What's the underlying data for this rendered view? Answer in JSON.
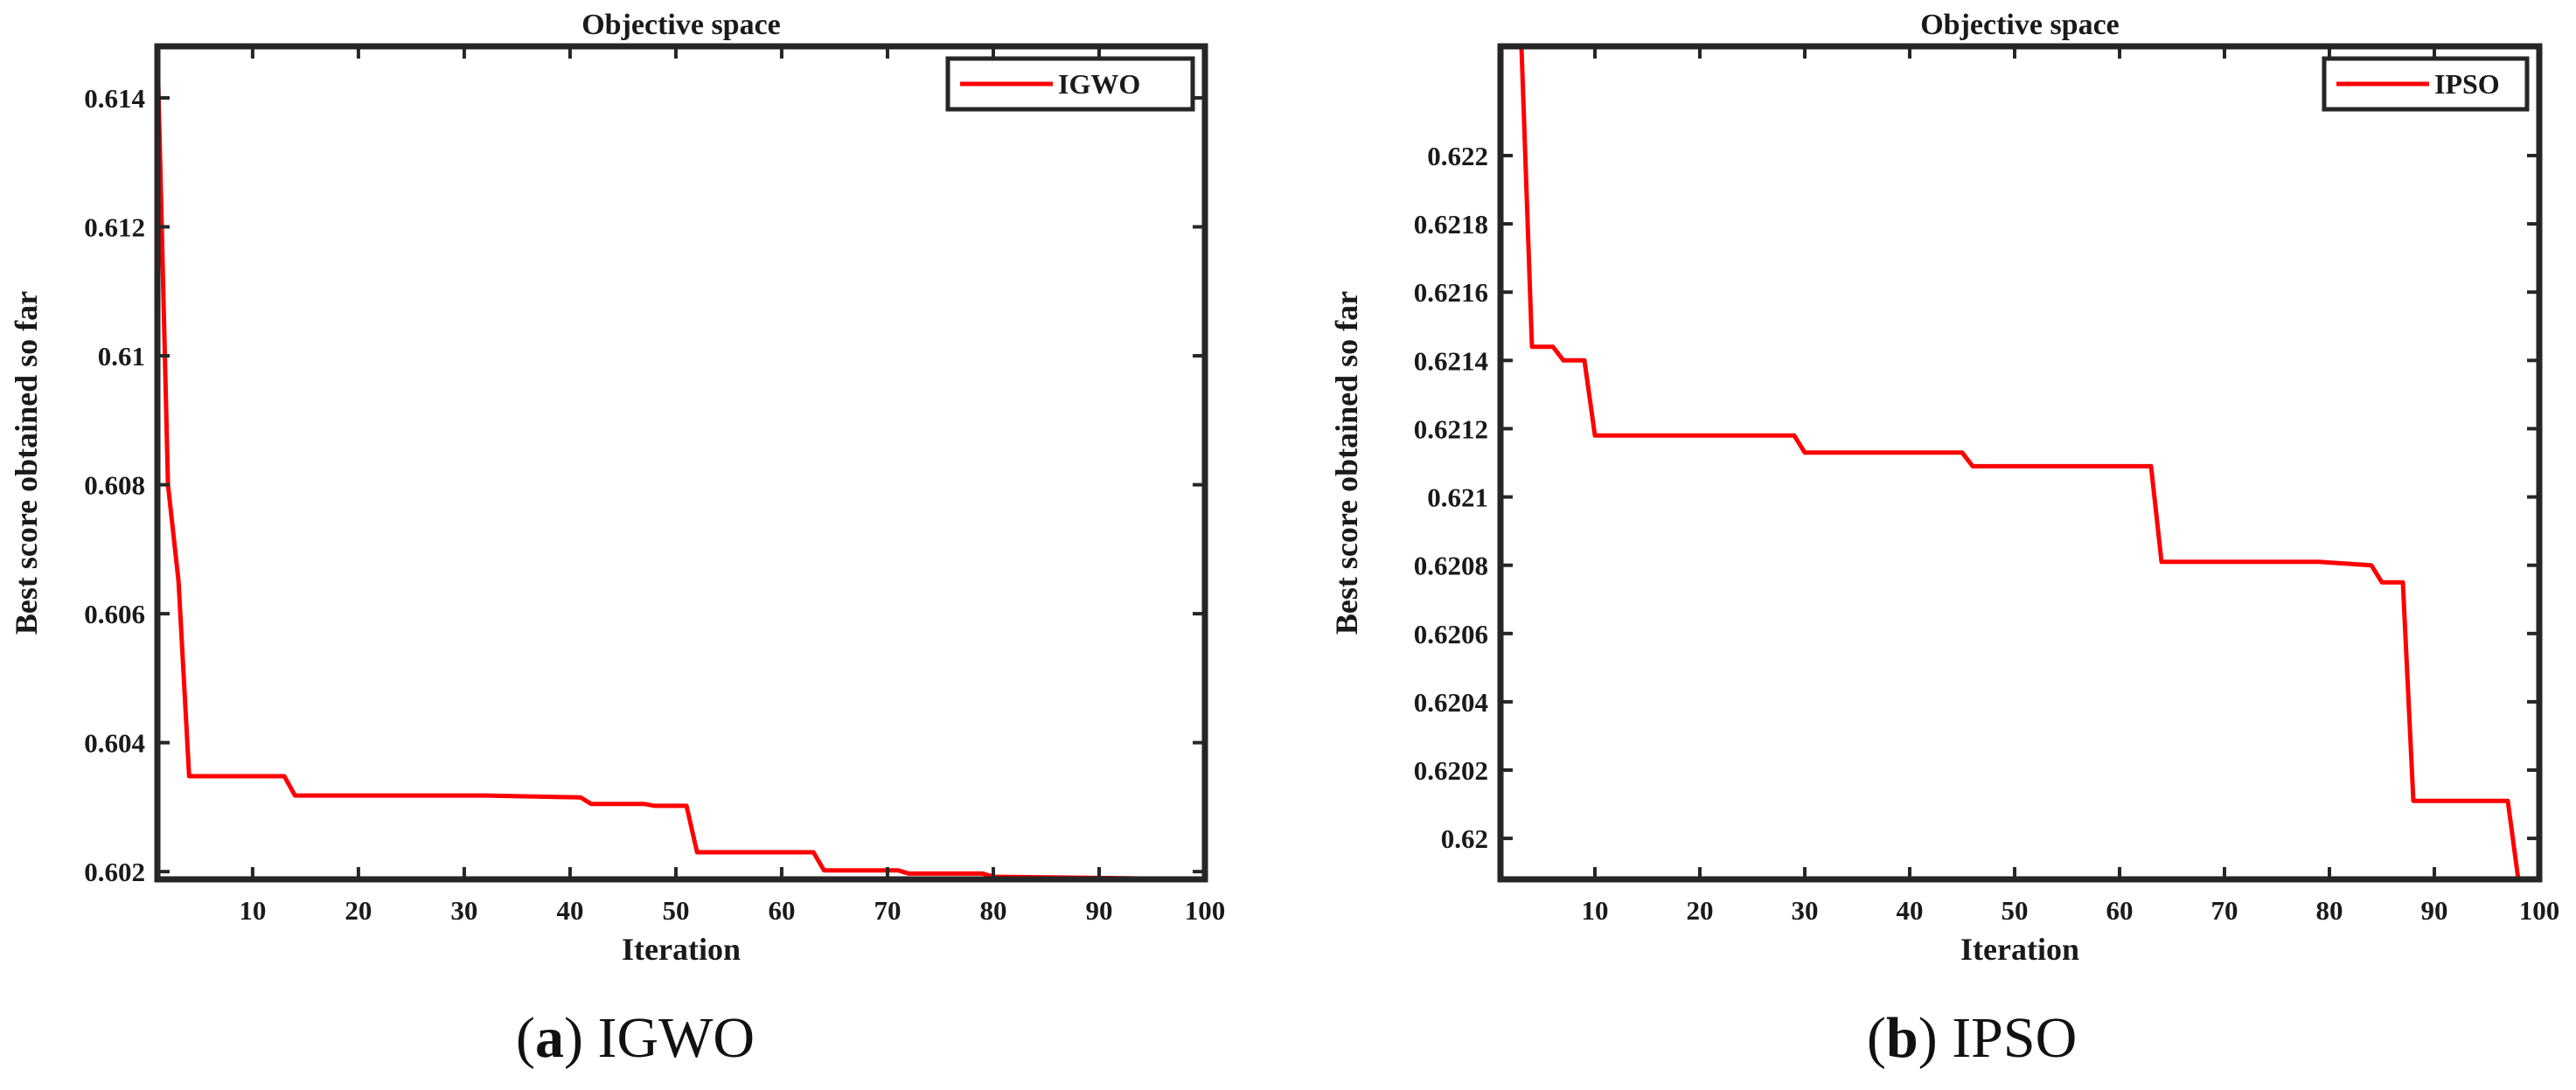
{
  "captions": [
    {
      "letter": "a",
      "text": "IGWO"
    },
    {
      "letter": "b",
      "text": "IPSO"
    }
  ],
  "chart_data": [
    {
      "type": "line",
      "title": "Objective space",
      "xlabel": "Iteration",
      "ylabel": "Best score obtained so far",
      "xlim": [
        1,
        100
      ],
      "ylim": [
        0.60188,
        0.6148
      ],
      "xticks": [
        10,
        20,
        30,
        40,
        50,
        60,
        70,
        80,
        90,
        100
      ],
      "yticks": [
        0.602,
        0.604,
        0.606,
        0.608,
        0.61,
        0.612,
        0.614
      ],
      "yticklabels": [
        "0.602",
        "0.604",
        "0.606",
        "0.608",
        "0.61",
        "0.612",
        "0.614"
      ],
      "legend_position": "top-right",
      "color": "#ff0000",
      "series": [
        {
          "name": "IGWO",
          "x": [
            1,
            2,
            3,
            4,
            13,
            14,
            32,
            41,
            42,
            47,
            48,
            51,
            52,
            63,
            64,
            71,
            72,
            79,
            80,
            91,
            100
          ],
          "y": [
            0.6148,
            0.608,
            0.6065,
            0.60348,
            0.60348,
            0.60318,
            0.60318,
            0.60315,
            0.60305,
            0.60305,
            0.60302,
            0.60302,
            0.6023,
            0.6023,
            0.60202,
            0.60202,
            0.60197,
            0.60197,
            0.60192,
            0.6019,
            0.60188
          ]
        }
      ]
    },
    {
      "type": "line",
      "title": "Objective space",
      "xlabel": "Iteration",
      "ylabel": "Best score obtained so far",
      "xlim": [
        1,
        100
      ],
      "ylim": [
        0.61988,
        0.62232
      ],
      "xticks": [
        10,
        20,
        30,
        40,
        50,
        60,
        70,
        80,
        90,
        100
      ],
      "yticks": [
        0.62,
        0.6202,
        0.6204,
        0.6206,
        0.6208,
        0.621,
        0.6212,
        0.6214,
        0.6216,
        0.6218,
        0.622
      ],
      "yticklabels": [
        "0.62",
        "0.6202",
        "0.6204",
        "0.6206",
        "0.6208",
        "0.621",
        "0.6212",
        "0.6214",
        "0.6216",
        "0.6218",
        "0.622"
      ],
      "legend_position": "top-right",
      "color": "#ff0000",
      "series": [
        {
          "name": "IPSO",
          "x": [
            1,
            3,
            4,
            6,
            7,
            9,
            10,
            29,
            30,
            45,
            46,
            63,
            64,
            79,
            84,
            85,
            87,
            88,
            97,
            98,
            100
          ],
          "y": [
            0.62232,
            0.62232,
            0.62144,
            0.62144,
            0.6214,
            0.6214,
            0.62118,
            0.62118,
            0.62113,
            0.62113,
            0.62109,
            0.62109,
            0.62081,
            0.62081,
            0.6208,
            0.62075,
            0.62075,
            0.62011,
            0.62011,
            0.61988,
            0.61988
          ]
        }
      ]
    }
  ]
}
